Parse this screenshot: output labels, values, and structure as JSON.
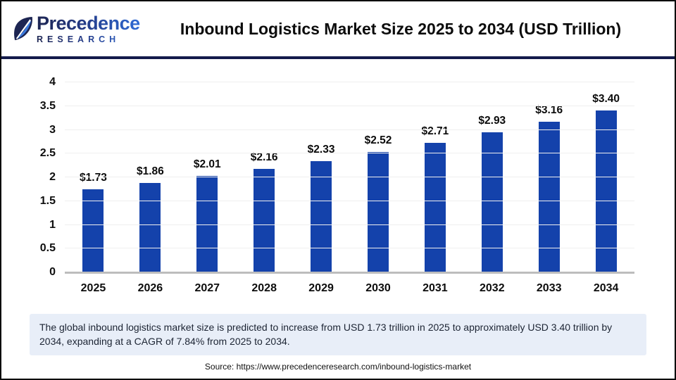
{
  "header": {
    "logo": {
      "name": "Precedence",
      "subtitle": "RESEARCH"
    },
    "title": "Inbound Logistics Market Size 2025 to 2034 (USD Trillion)"
  },
  "chart_data": {
    "type": "bar",
    "title": "Inbound Logistics Market Size 2025 to 2034 (USD Trillion)",
    "categories": [
      "2025",
      "2026",
      "2027",
      "2028",
      "2029",
      "2030",
      "2031",
      "2032",
      "2033",
      "2034"
    ],
    "values": [
      1.73,
      1.86,
      2.01,
      2.16,
      2.33,
      2.52,
      2.71,
      2.93,
      3.16,
      3.4
    ],
    "value_labels": [
      "$1.73",
      "$1.86",
      "$2.01",
      "$2.16",
      "$2.33",
      "$2.52",
      "$2.71",
      "$2.93",
      "$3.16",
      "$3.40"
    ],
    "xlabel": "",
    "ylabel": "",
    "ylim": [
      0,
      4
    ],
    "ytick_values": [
      0,
      0.5,
      1,
      1.5,
      2,
      2.5,
      3,
      3.5,
      4
    ],
    "ytick_labels": [
      "0",
      "0.5",
      "1",
      "1.5",
      "2",
      "2.5",
      "3",
      "3.5",
      "4"
    ],
    "grid": "horizontal",
    "legend": "none",
    "bar_color": "#1442ab"
  },
  "footer": {
    "summary": "The global inbound logistics market size is predicted to increase from USD 1.73 trillion in 2025 to approximately USD 3.40 trillion by 2034, expanding at a CAGR of 7.84% from 2025 to 2034.",
    "source": "Source: https://www.precedenceresearch.com/inbound-logistics-market"
  },
  "colors": {
    "bar": "#1442ab",
    "header_divider": "#141b4b",
    "summary_background": "#e8eef8",
    "logo_navy": "#1d2552",
    "logo_blue": "#2f6bd6",
    "gridline": "#efefef",
    "axis_line": "#bdbdbd"
  }
}
